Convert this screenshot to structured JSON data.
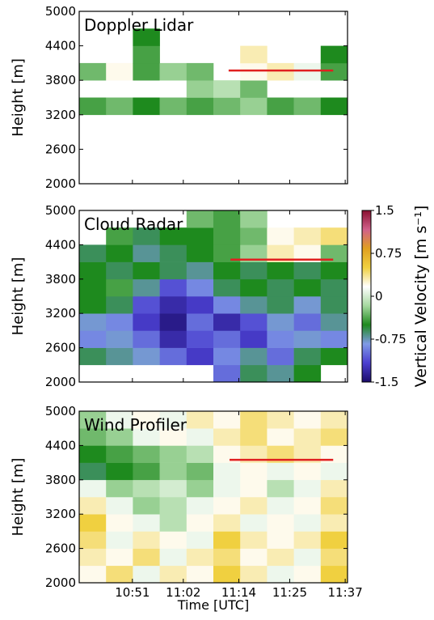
{
  "chart_data": [
    {
      "type": "heatmap",
      "label": "Doppler Lidar",
      "ylabel": "Height [m]",
      "xlim": [
        639.5,
        697.5
      ],
      "ylim": [
        2000,
        5000
      ],
      "yticks": [
        2000,
        2600,
        3200,
        3800,
        4400,
        5000
      ],
      "x_bins": [
        639.5,
        645.3,
        651.1,
        656.9,
        662.7,
        668.5,
        674.3,
        680.1,
        685.9,
        691.7,
        697.5
      ],
      "y_bins": [
        2000,
        2300,
        2600,
        2900,
        3200,
        3500,
        3800,
        4100,
        4400,
        4700,
        5000
      ],
      "cells": [
        [
          null,
          null,
          null,
          null,
          null,
          null,
          null,
          null,
          null,
          null
        ],
        [
          null,
          null,
          null,
          null,
          null,
          null,
          null,
          null,
          null,
          null
        ],
        [
          null,
          null,
          null,
          null,
          null,
          null,
          null,
          null,
          null,
          null
        ],
        [
          null,
          null,
          null,
          null,
          null,
          null,
          null,
          null,
          null,
          null
        ],
        [
          -0.4,
          -0.3,
          -0.5,
          -0.3,
          -0.4,
          -0.3,
          -0.2,
          -0.4,
          -0.3,
          -0.5
        ],
        [
          null,
          null,
          null,
          null,
          -0.2,
          -0.1,
          -0.3,
          null,
          null,
          null
        ],
        [
          -0.3,
          0.2,
          -0.4,
          -0.2,
          -0.3,
          null,
          0.2,
          0.3,
          0.1,
          -0.4
        ],
        [
          null,
          null,
          -0.4,
          null,
          null,
          null,
          0.3,
          null,
          null,
          -0.5
        ],
        [
          null,
          null,
          -0.5,
          null,
          null,
          null,
          null,
          null,
          null,
          null
        ],
        [
          null,
          null,
          null,
          null,
          null,
          null,
          null,
          null,
          null,
          null
        ]
      ],
      "reference_line": {
        "color": "#e02020",
        "y": 3970,
        "x": [
          671.8,
          694.4
        ]
      }
    },
    {
      "type": "heatmap",
      "label": "Cloud Radar",
      "ylabel": "Height [m]",
      "xlim": [
        639.5,
        697.5
      ],
      "ylim": [
        2000,
        5000
      ],
      "yticks": [
        2000,
        2600,
        3200,
        3800,
        4400,
        5000
      ],
      "x_bins": [
        639.5,
        645.3,
        651.1,
        656.9,
        662.7,
        668.5,
        674.3,
        680.1,
        685.9,
        691.7,
        697.5
      ],
      "y_bins": [
        2000,
        2300,
        2600,
        2900,
        3200,
        3500,
        3800,
        4100,
        4400,
        4700,
        5000
      ],
      "cells": [
        [
          null,
          null,
          null,
          null,
          null,
          -1.0,
          -0.6,
          -0.7,
          -0.5,
          null
        ],
        [
          -0.6,
          -0.7,
          -0.8,
          -1.0,
          -1.2,
          -0.9,
          -0.7,
          -1.0,
          -0.6,
          -0.5
        ],
        [
          -0.9,
          -0.8,
          -1.0,
          -1.3,
          -1.1,
          -1.0,
          -1.2,
          -0.9,
          -0.8,
          -0.9
        ],
        [
          -0.8,
          -0.9,
          -1.2,
          -1.4,
          -1.0,
          -1.3,
          -1.1,
          -0.8,
          -1.0,
          -0.7
        ],
        [
          -0.5,
          -0.6,
          -1.1,
          -1.3,
          -1.2,
          -0.9,
          -0.7,
          -0.6,
          -0.8,
          -0.6
        ],
        [
          -0.5,
          -0.4,
          -0.7,
          -1.1,
          -0.9,
          -0.6,
          -0.5,
          -0.6,
          -0.5,
          -0.6
        ],
        [
          -0.5,
          -0.6,
          -0.5,
          -0.6,
          -0.7,
          -0.5,
          -0.6,
          -0.5,
          -0.6,
          -0.5
        ],
        [
          -0.6,
          -0.5,
          -0.7,
          -0.6,
          -0.5,
          -0.4,
          -0.2,
          0.3,
          0.2,
          -0.3
        ],
        [
          null,
          -0.4,
          -0.6,
          -0.5,
          -0.5,
          -0.4,
          -0.3,
          0.2,
          0.3,
          0.4
        ],
        [
          null,
          null,
          null,
          null,
          -0.3,
          -0.4,
          -0.2,
          null,
          null,
          null
        ]
      ],
      "reference_line": {
        "color": "#e02020",
        "y": 4140,
        "x": [
          672.2,
          694.4
        ]
      },
      "colorbar": {
        "label": "Vertical Velocity [m s⁻¹]",
        "lim": [
          -1.5,
          1.5
        ],
        "ticks": [
          -1.5,
          -0.75,
          0,
          0.75,
          1.5
        ],
        "colormap": [
          "#1b0c6b",
          "#4b3fd0",
          "#7f9ae6",
          "#1e8a1e",
          "#a6d8a0",
          "#ffffff",
          "#f0d040",
          "#e0a020",
          "#d0608a",
          "#8a1030"
        ]
      }
    },
    {
      "type": "heatmap",
      "label": "Wind Profiler",
      "ylabel": "Height [m]",
      "xlabel": "Time [UTC]",
      "xlim": [
        639.5,
        697.5
      ],
      "ylim": [
        2000,
        5000
      ],
      "yticks": [
        2000,
        2600,
        3200,
        3800,
        4400,
        5000
      ],
      "xticks": [
        {
          "value": 651,
          "label": "10:51"
        },
        {
          "value": 662,
          "label": "11:02"
        },
        {
          "value": 674,
          "label": "11:14"
        },
        {
          "value": 685,
          "label": "11:25"
        },
        {
          "value": 697,
          "label": "11:37"
        }
      ],
      "x_bins": [
        639.5,
        645.3,
        651.1,
        656.9,
        662.7,
        668.5,
        674.3,
        680.1,
        685.9,
        691.7,
        697.5
      ],
      "y_bins": [
        2000,
        2300,
        2600,
        2900,
        3200,
        3500,
        3800,
        4100,
        4400,
        4700,
        5000
      ],
      "cells": [
        [
          0.2,
          0.4,
          0.1,
          0.3,
          0.2,
          0.5,
          0.3,
          0.1,
          0.2,
          0.5
        ],
        [
          0.3,
          0.2,
          0.4,
          0.1,
          0.3,
          0.4,
          0.2,
          0.3,
          0.1,
          0.4
        ],
        [
          0.4,
          0.1,
          0.3,
          0.2,
          0.1,
          0.5,
          0.3,
          0.2,
          0.3,
          0.5
        ],
        [
          0.5,
          0.2,
          0.1,
          -0.1,
          0.2,
          0.3,
          0.1,
          0.2,
          0.1,
          0.3
        ],
        [
          0.3,
          0.1,
          -0.2,
          -0.1,
          0.1,
          0.2,
          0.3,
          0.1,
          0.2,
          0.4
        ],
        [
          0.1,
          -0.2,
          -0.1,
          0.0,
          -0.2,
          0.1,
          0.2,
          -0.1,
          0.1,
          0.3
        ],
        [
          -0.6,
          -0.5,
          -0.4,
          -0.2,
          -0.3,
          0.1,
          0.2,
          0.1,
          0.2,
          0.1
        ],
        [
          -0.5,
          -0.4,
          -0.3,
          -0.2,
          -0.1,
          0.2,
          0.3,
          0.4,
          0.3,
          0.2
        ],
        [
          -0.3,
          -0.2,
          0.1,
          0.2,
          0.1,
          0.3,
          0.4,
          0.2,
          0.3,
          0.4
        ],
        [
          -0.2,
          0.1,
          0.2,
          0.1,
          0.3,
          0.2,
          0.4,
          0.3,
          0.2,
          0.3
        ]
      ],
      "reference_line": {
        "color": "#e02020",
        "y": 4150,
        "x": [
          672.0,
          694.4
        ]
      }
    }
  ]
}
